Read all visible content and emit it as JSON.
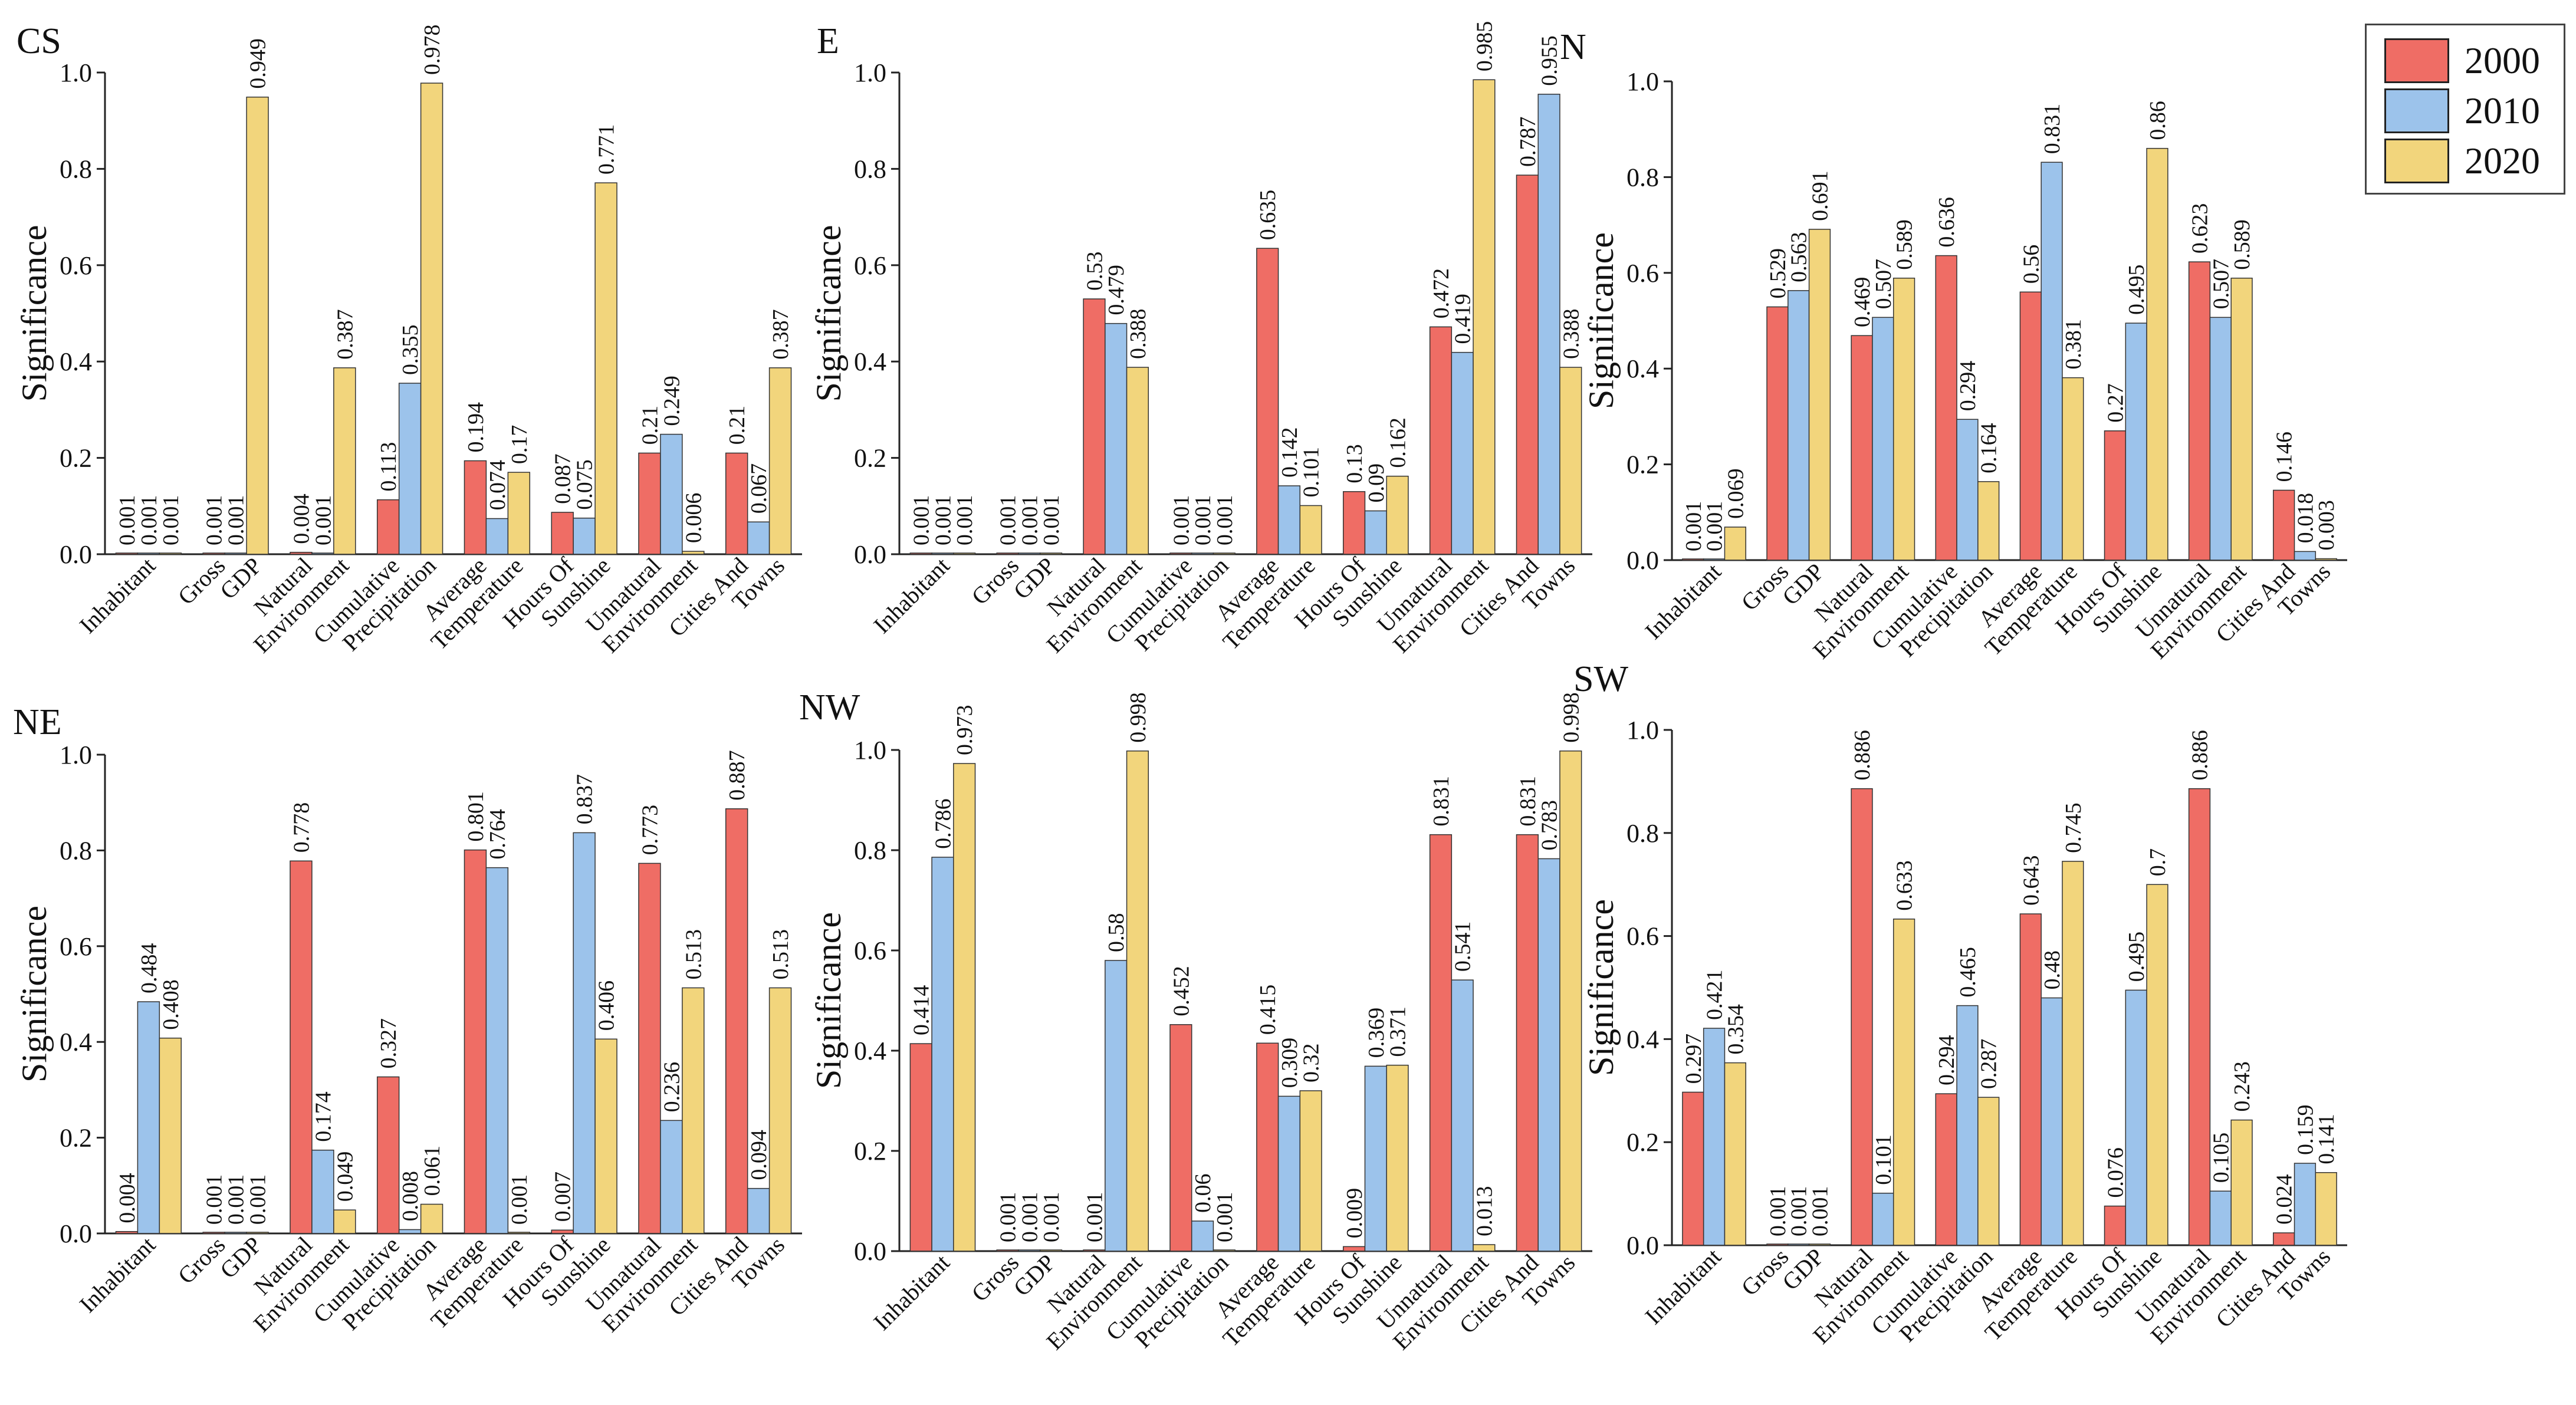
{
  "legend": {
    "items": [
      {
        "label": "2000",
        "color": "#ef6d65"
      },
      {
        "label": "2010",
        "color": "#9cc3eb"
      },
      {
        "label": "2020",
        "color": "#f2d57c"
      }
    ]
  },
  "chart_data": [
    {
      "type": "bar",
      "title": "CS",
      "ylabel": "Significance",
      "ylim": [
        0,
        1.0
      ],
      "yticks": [
        "0.0",
        "0.2",
        "0.4",
        "0.6",
        "0.8",
        "1.0"
      ],
      "categories": [
        "Inhabitant",
        "Gross GDP",
        "Natural Environment",
        "Cumulative Precipitation",
        "Average Temperature",
        "Hours Of Sunshine",
        "Unnatural Environment",
        "Cities And Towns"
      ],
      "tick_labels": [
        "Inhabitant",
        "Gross",
        "GDP",
        "Natural",
        "Environment",
        "Cumulative",
        "Precipitation",
        "Average",
        "Temperature",
        "Hours Of",
        "Sunshine",
        "Unnatural",
        "Environment",
        "Cities And",
        "Towns"
      ],
      "series": [
        {
          "name": "2000",
          "values": [
            0.001,
            0.001,
            0.004,
            0.113,
            0.194,
            0.087,
            0.21,
            0.21
          ],
          "labels": [
            "0.001",
            "0.001",
            "0.004",
            "0.113",
            "0.194",
            "0.087",
            "0.21",
            "0.21"
          ]
        },
        {
          "name": "2010",
          "values": [
            0.001,
            0.001,
            0.001,
            0.355,
            0.074,
            0.075,
            0.249,
            0.067
          ],
          "labels": [
            "0.001",
            "0.001",
            "0.001",
            "0.355",
            "0.074",
            "0.075",
            "0.249",
            "0.067"
          ]
        },
        {
          "name": "2020",
          "values": [
            0.001,
            0.949,
            0.387,
            0.978,
            0.17,
            0.771,
            0.006,
            0.387
          ],
          "labels": [
            "0.001",
            "0.949",
            "0.387",
            "0.978",
            "0.17",
            "0.771",
            "0.006",
            "0.387"
          ]
        }
      ]
    },
    {
      "type": "bar",
      "title": "E",
      "ylabel": "Significance",
      "ylim": [
        0,
        1.0
      ],
      "yticks": [
        "0.0",
        "0.2",
        "0.4",
        "0.6",
        "0.8",
        "1.0"
      ],
      "categories": [
        "Inhabitant",
        "Gross GDP",
        "Natural Environment",
        "Cumulative Precipitation",
        "Average Temperature",
        "Hours Of Sunshine",
        "Unnatural Environment",
        "Cities And Towns"
      ],
      "tick_labels": [
        "Inhabitant",
        "Gross",
        "GDP",
        "Natural",
        "Environment",
        "Cumulative",
        "Precipitation",
        "Average",
        "Temperature",
        "Hours Of",
        "Sunshine",
        "Unnatural",
        "Environment",
        "Cities And",
        "Towns"
      ],
      "series": [
        {
          "name": "2000",
          "values": [
            0.001,
            0.001,
            0.53,
            0.001,
            0.635,
            0.13,
            0.472,
            0.787
          ],
          "labels": [
            "0.001",
            "0.001",
            "0.53",
            "0.001",
            "0.635",
            "0.13",
            "0.472",
            "0.787"
          ]
        },
        {
          "name": "2010",
          "values": [
            0.001,
            0.001,
            0.479,
            0.001,
            0.142,
            0.09,
            0.419,
            0.955
          ],
          "labels": [
            "0.001",
            "0.001",
            "0.479",
            "0.001",
            "0.142",
            "0.09",
            "0.419",
            "0.955"
          ]
        },
        {
          "name": "2020",
          "values": [
            0.001,
            0.001,
            0.388,
            0.001,
            0.101,
            0.162,
            0.985,
            0.388
          ],
          "labels": [
            "0.001",
            "0.001",
            "0.388",
            "0.001",
            "0.101",
            "0.162",
            "0.985",
            "0.388"
          ]
        }
      ]
    },
    {
      "type": "bar",
      "title": "N",
      "ylabel": "Significance",
      "ylim": [
        0,
        1.0
      ],
      "yticks": [
        "0.0",
        "0.2",
        "0.4",
        "0.6",
        "0.8",
        "1.0"
      ],
      "categories": [
        "Inhabitant",
        "Gross GDP",
        "Natural Environment",
        "Cumulative Precipitation",
        "Average Temperature",
        "Hours Of Sunshine",
        "Unnatural Environment",
        "Cities And Towns"
      ],
      "tick_labels": [
        "Inhabitant",
        "Gross",
        "GDP",
        "Natural",
        "Environment",
        "Cumulative",
        "Precipitation",
        "Average",
        "Temperature",
        "Hours Of",
        "Sunshine",
        "Unnatural",
        "Environment",
        "Cities And",
        "Towns"
      ],
      "series": [
        {
          "name": "2000",
          "values": [
            0.001,
            0.529,
            0.469,
            0.636,
            0.56,
            0.27,
            0.623,
            0.146
          ],
          "labels": [
            "0.001",
            "0.529",
            "0.469",
            "0.636",
            "0.56",
            "0.27",
            "0.623",
            "0.146"
          ]
        },
        {
          "name": "2010",
          "values": [
            0.001,
            0.563,
            0.507,
            0.294,
            0.831,
            0.495,
            0.507,
            0.018
          ],
          "labels": [
            "0.001",
            "0.563",
            "0.507",
            "0.294",
            "0.831",
            "0.495",
            "0.507",
            "0.018"
          ]
        },
        {
          "name": "2020",
          "values": [
            0.069,
            0.691,
            0.589,
            0.164,
            0.381,
            0.86,
            0.589,
            0.003
          ],
          "labels": [
            "0.069",
            "0.691",
            "0.589",
            "0.164",
            "0.381",
            "0.86",
            "0.589",
            "0.003"
          ]
        }
      ]
    },
    {
      "type": "bar",
      "title": "NE",
      "ylabel": "Significance",
      "ylim": [
        0,
        1.0
      ],
      "yticks": [
        "0.0",
        "0.2",
        "0.4",
        "0.6",
        "0.8",
        "1.0"
      ],
      "categories": [
        "Inhabitant",
        "Gross GDP",
        "Natural Environment",
        "Cumulative Precipitation",
        "Average Temperature",
        "Hours Of Sunshine",
        "Unnatural Environment",
        "Cities And Towns"
      ],
      "tick_labels": [
        "Inhabitant",
        "Gross",
        "GDP",
        "Natural",
        "Environment",
        "Cumulative",
        "Precipitation",
        "Average",
        "Temperature",
        "Hours Of",
        "Sunshine",
        "Unnatural",
        "Environment",
        "Cities And",
        "Towns"
      ],
      "series": [
        {
          "name": "2000",
          "values": [
            0.004,
            0.001,
            0.778,
            0.327,
            0.801,
            0.007,
            0.773,
            0.887
          ],
          "labels": [
            "0.004",
            "0.001",
            "0.778",
            "0.327",
            "0.801",
            "0.007",
            "0.773",
            "0.887"
          ]
        },
        {
          "name": "2010",
          "values": [
            0.484,
            0.001,
            0.174,
            0.008,
            0.764,
            0.837,
            0.236,
            0.094
          ],
          "labels": [
            "0.484",
            "0.001",
            "0.174",
            "0.008",
            "0.764",
            "0.837",
            "0.236",
            "0.094"
          ]
        },
        {
          "name": "2020",
          "values": [
            0.408,
            0.001,
            0.049,
            0.061,
            0.001,
            0.406,
            0.513,
            0.513
          ],
          "labels": [
            "0.408",
            "0.001",
            "0.049",
            "0.061",
            "0.001",
            "0.406",
            "0.513",
            "0.513"
          ]
        }
      ]
    },
    {
      "type": "bar",
      "title": "NW",
      "ylabel": "Significance",
      "ylim": [
        0,
        1.0
      ],
      "yticks": [
        "0.0",
        "0.2",
        "0.4",
        "0.6",
        "0.8",
        "1.0"
      ],
      "categories": [
        "Inhabitant",
        "Gross GDP",
        "Natural Environment",
        "Cumulative Precipitation",
        "Average Temperature",
        "Hours Of Sunshine",
        "Unnatural Environment",
        "Cities And Towns"
      ],
      "tick_labels": [
        "Inhabitant",
        "Gross",
        "GDP",
        "Natural",
        "Environment",
        "Cumulative",
        "Precipitation",
        "Average",
        "Temperature",
        "Hours Of",
        "Sunshine",
        "Unnatural",
        "Environment",
        "Cities And",
        "Towns"
      ],
      "series": [
        {
          "name": "2000",
          "values": [
            0.414,
            0.001,
            0.001,
            0.452,
            0.415,
            0.009,
            0.831,
            0.831
          ],
          "labels": [
            "0.414",
            "0.001",
            "0.001",
            "0.452",
            "0.415",
            "0.009",
            "0.831",
            "0.831"
          ]
        },
        {
          "name": "2010",
          "values": [
            0.786,
            0.001,
            0.58,
            0.06,
            0.309,
            0.369,
            0.541,
            0.783
          ],
          "labels": [
            "0.786",
            "0.001",
            "0.58",
            "0.06",
            "0.309",
            "0.369",
            "0.541",
            "0.783"
          ]
        },
        {
          "name": "2020",
          "values": [
            0.973,
            0.001,
            0.998,
            0.001,
            0.32,
            0.371,
            0.013,
            0.998
          ],
          "labels": [
            "0.973",
            "0.001",
            "0.998",
            "0.001",
            "0.32",
            "0.371",
            "0.013",
            "0.998"
          ]
        }
      ]
    },
    {
      "type": "bar",
      "title": "SW",
      "ylabel": "Significance",
      "ylim": [
        0,
        1.0
      ],
      "yticks": [
        "0.0",
        "0.2",
        "0.4",
        "0.6",
        "0.8",
        "1.0"
      ],
      "categories": [
        "Inhabitant",
        "Gross GDP",
        "Natural Environment",
        "Cumulative Precipitation",
        "Average Temperature",
        "Hours Of Sunshine",
        "Unnatural Environment",
        "Cities And Towns"
      ],
      "tick_labels": [
        "Inhabitant",
        "Gross",
        "GDP",
        "Natural",
        "Environment",
        "Cumulative",
        "Precipitation",
        "Average",
        "Temperature",
        "Hours Of",
        "Sunshine",
        "Unnatural",
        "Environment",
        "Cities And",
        "Towns"
      ],
      "series": [
        {
          "name": "2000",
          "values": [
            0.297,
            0.001,
            0.886,
            0.294,
            0.643,
            0.076,
            0.886,
            0.024
          ],
          "labels": [
            "0.297",
            "0.001",
            "0.886",
            "0.294",
            "0.643",
            "0.076",
            "0.886",
            "0.024"
          ]
        },
        {
          "name": "2010",
          "values": [
            0.421,
            0.001,
            0.101,
            0.465,
            0.48,
            0.495,
            0.105,
            0.159
          ],
          "labels": [
            "0.421",
            "0.001",
            "0.101",
            "0.465",
            "0.48",
            "0.495",
            "0.105",
            "0.159"
          ]
        },
        {
          "name": "2020",
          "values": [
            0.354,
            0.001,
            0.633,
            0.287,
            0.745,
            0.7,
            0.243,
            0.141
          ],
          "labels": [
            "0.354",
            "0.001",
            "0.633",
            "0.287",
            "0.745",
            "0.7",
            "0.243",
            "0.141"
          ]
        }
      ]
    }
  ]
}
